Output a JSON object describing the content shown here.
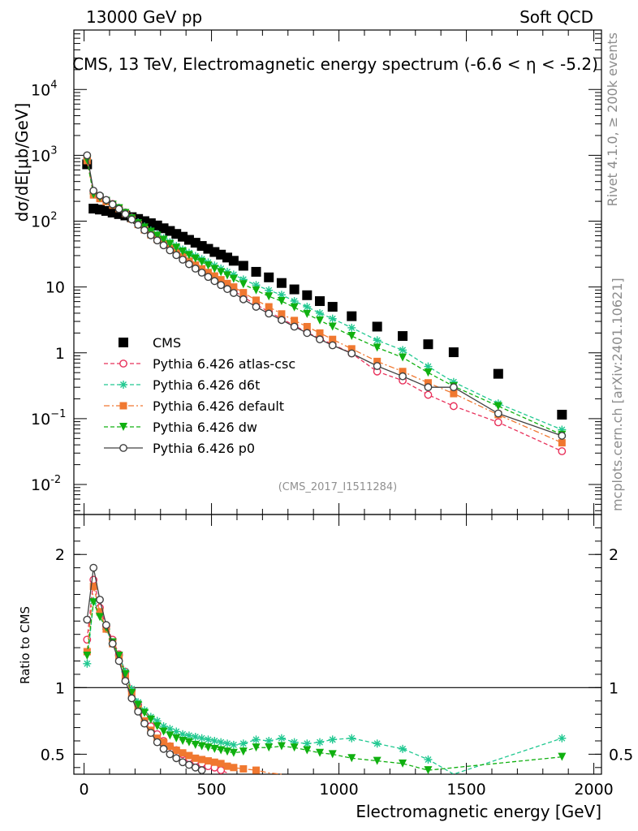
{
  "header": {
    "energy_label": "13000 GeV pp",
    "process_label": "Soft QCD"
  },
  "side_labels": {
    "rivet": "Rivet 4.1.0, ≥ 200k events",
    "mcplots": "mcplots.cern.ch [arXiv:2401.10621]"
  },
  "colors": {
    "CMS": "#000000",
    "atlas_csc": "#e8305a",
    "d6t": "#20c890",
    "default": "#f07830",
    "dw": "#10b010",
    "p0": "#404040"
  },
  "chart_data": [
    {
      "type": "scatter",
      "panel": "main",
      "title": "CMS, 13 TeV, Electromagnetic energy spectrum (-6.6 < η < -5.2)",
      "ylabel": "dσ/dE[μb/GeV]",
      "xlabel": "Electromagnetic energy [GeV]",
      "yscale": "log",
      "xlim": [
        -40,
        2030
      ],
      "ylim": [
        0.0035,
        80000
      ],
      "analysis_id": "(CMS_2017_I1511284)",
      "x_ticks": [
        "0",
        "500",
        "1000",
        "1500",
        "2000"
      ],
      "y_ticks": [
        {
          "base": "10",
          "exp": "-2",
          "value": 0.01
        },
        {
          "base": "10",
          "exp": "−1",
          "value": 0.1
        },
        {
          "base": "1",
          "exp": "",
          "value": 1
        },
        {
          "base": "10",
          "exp": "",
          "value": 10
        },
        {
          "base": "10",
          "exp": "2",
          "value": 100
        },
        {
          "base": "10",
          "exp": "3",
          "value": 1000
        },
        {
          "base": "10",
          "exp": "4",
          "value": 10000
        }
      ],
      "legend": [
        "CMS",
        "Pythia 6.426 atlas-csc",
        "Pythia 6.426 d6t",
        "Pythia 6.426 default",
        "Pythia 6.426 dw",
        "Pythia 6.426 p0"
      ],
      "series": [
        {
          "name": "CMS",
          "style": "square",
          "x": [
            12,
            37,
            62,
            87,
            112,
            137,
            162,
            187,
            212,
            237,
            262,
            287,
            312,
            337,
            362,
            387,
            412,
            437,
            462,
            487,
            512,
            537,
            562,
            587,
            625,
            675,
            725,
            775,
            825,
            875,
            925,
            975,
            1050,
            1150,
            1250,
            1350,
            1450,
            1625,
            1875
          ],
          "y": [
            730,
            155,
            150,
            143,
            135,
            128,
            122,
            115,
            108,
            100,
            93,
            86,
            78,
            71,
            64,
            58,
            52,
            47,
            42,
            38,
            34,
            31,
            28,
            25,
            21,
            17,
            14,
            11.5,
            9.2,
            7.5,
            6.1,
            5.0,
            3.6,
            2.5,
            1.8,
            1.35,
            1.02,
            0.48,
            0.115
          ]
        },
        {
          "name": "Pythia 6.426 atlas-csc",
          "style": "open-circle",
          "x": [
            12,
            37,
            62,
            87,
            112,
            137,
            162,
            187,
            212,
            237,
            262,
            287,
            312,
            337,
            362,
            387,
            412,
            437,
            462,
            487,
            512,
            537,
            562,
            587,
            625,
            675,
            725,
            775,
            825,
            875,
            925,
            975,
            1050,
            1150,
            1250,
            1350,
            1450,
            1625,
            1875
          ],
          "y": [
            880,
            275,
            235,
            208,
            183,
            159,
            136,
            113,
            94,
            79,
            66,
            56,
            47,
            40,
            34,
            29,
            24.5,
            21,
            18,
            15.5,
            13.5,
            11.7,
            10.2,
            8.8,
            7.0,
            5.4,
            4.2,
            3.3,
            2.6,
            2.05,
            1.65,
            1.35,
            0.98,
            0.52,
            0.38,
            0.23,
            0.155,
            0.088,
            0.032
          ]
        },
        {
          "name": "Pythia 6.426 d6t",
          "style": "star",
          "x": [
            12,
            37,
            62,
            87,
            112,
            137,
            162,
            187,
            212,
            237,
            262,
            287,
            312,
            337,
            362,
            387,
            412,
            437,
            462,
            487,
            512,
            537,
            562,
            587,
            625,
            675,
            725,
            775,
            825,
            875,
            925,
            975,
            1050,
            1150,
            1250,
            1350,
            1450,
            1625,
            1875
          ],
          "y": [
            860,
            260,
            230,
            205,
            180,
            160,
            135,
            113,
            96,
            83,
            72,
            63,
            55,
            48,
            42,
            37,
            33,
            29.5,
            26.5,
            23.6,
            21.2,
            19,
            17,
            15.4,
            13.0,
            10.7,
            8.9,
            7.6,
            6.1,
            5.0,
            4.0,
            3.3,
            2.4,
            1.55,
            1.1,
            0.62,
            0.36,
            0.17,
            0.068
          ]
        },
        {
          "name": "Pythia 6.426 default",
          "style": "filled-square",
          "x": [
            12,
            37,
            62,
            87,
            112,
            137,
            162,
            187,
            212,
            237,
            262,
            287,
            312,
            337,
            362,
            387,
            412,
            437,
            462,
            487,
            512,
            537,
            562,
            587,
            625,
            675,
            725,
            775,
            825,
            875,
            925,
            975,
            1050,
            1150,
            1250,
            1350,
            1450,
            1625,
            1875
          ],
          "y": [
            830,
            250,
            220,
            198,
            175,
            155,
            131,
            108,
            89,
            74,
            62,
            53,
            45,
            38.5,
            33,
            28.5,
            24.7,
            21.5,
            18.9,
            16.6,
            14.7,
            12.9,
            11.3,
            10.0,
            8.2,
            6.3,
            5.0,
            3.9,
            3.1,
            2.5,
            2.0,
            1.6,
            1.15,
            0.74,
            0.52,
            0.35,
            0.24,
            0.115,
            0.043
          ]
        },
        {
          "name": "Pythia 6.426 dw",
          "style": "triangle-down",
          "x": [
            12,
            37,
            62,
            87,
            112,
            137,
            162,
            187,
            212,
            237,
            262,
            287,
            312,
            337,
            362,
            387,
            412,
            437,
            462,
            487,
            512,
            537,
            562,
            587,
            625,
            675,
            725,
            775,
            825,
            875,
            925,
            975,
            1050,
            1150,
            1250,
            1350,
            1450,
            1625,
            1875
          ],
          "y": [
            850,
            255,
            228,
            203,
            178,
            157,
            133,
            110,
            93,
            80,
            69,
            60,
            52,
            45,
            39.5,
            34.5,
            30.5,
            27,
            24,
            21.2,
            18.8,
            16.8,
            15,
            13.3,
            11.0,
            8.9,
            7.2,
            6.1,
            4.9,
            3.9,
            3.1,
            2.5,
            1.8,
            1.2,
            0.85,
            0.5,
            0.31,
            0.155,
            0.057
          ]
        },
        {
          "name": "Pythia 6.426 p0",
          "style": "open-circle-line",
          "x": [
            12,
            37,
            62,
            87,
            112,
            137,
            162,
            187,
            212,
            237,
            262,
            287,
            312,
            337,
            362,
            387,
            412,
            437,
            462,
            487,
            512,
            537,
            562,
            587,
            625,
            675,
            725,
            775,
            825,
            875,
            925,
            975,
            1050,
            1150,
            1250,
            1350,
            1450,
            1625,
            1875
          ],
          "y": [
            1000,
            290,
            245,
            210,
            180,
            153,
            128,
            106,
            88,
            73,
            61,
            51,
            43,
            36,
            30.5,
            26,
            22.2,
            19,
            16.5,
            14.2,
            12.3,
            10.7,
            9.3,
            8.1,
            6.5,
            5.0,
            3.95,
            3.15,
            2.5,
            2.0,
            1.6,
            1.3,
            0.98,
            0.63,
            0.44,
            0.3,
            0.3,
            0.12,
            0.055
          ]
        }
      ]
    },
    {
      "type": "line",
      "panel": "ratio",
      "ylabel": "Ratio to CMS",
      "xlabel": "Electromagnetic energy [GeV]",
      "xlim": [
        -40,
        2030
      ],
      "ylim": [
        0.35,
        2.3
      ],
      "y_ticks": [
        "0.5",
        "1",
        "2"
      ],
      "x_ticks": [
        "0",
        "500",
        "1000",
        "1500",
        "2000"
      ],
      "series": [
        {
          "name": "Pythia 6.426 atlas-csc",
          "x": [
            12,
            37,
            62,
            87,
            112,
            137,
            162,
            187,
            212,
            237,
            262,
            287,
            312,
            337,
            362,
            387,
            412,
            437,
            462,
            487,
            512,
            537,
            562
          ],
          "y": [
            1.36,
            1.81,
            1.6,
            1.46,
            1.36,
            1.25,
            1.12,
            0.98,
            0.87,
            0.79,
            0.71,
            0.65,
            0.6,
            0.56,
            0.53,
            0.5,
            0.47,
            0.45,
            0.43,
            0.41,
            0.4,
            0.38,
            0.36
          ]
        },
        {
          "name": "Pythia 6.426 d6t",
          "x": [
            12,
            37,
            62,
            87,
            112,
            137,
            162,
            187,
            212,
            237,
            262,
            287,
            312,
            337,
            362,
            387,
            412,
            437,
            462,
            487,
            512,
            537,
            562,
            587,
            625,
            675,
            725,
            775,
            825,
            875,
            925,
            975,
            1050,
            1150,
            1250,
            1350,
            1450,
            1625,
            1875
          ],
          "y": [
            1.18,
            1.65,
            1.56,
            1.44,
            1.33,
            1.24,
            1.12,
            0.99,
            0.89,
            0.83,
            0.78,
            0.75,
            0.71,
            0.69,
            0.67,
            0.65,
            0.64,
            0.63,
            0.62,
            0.61,
            0.6,
            0.59,
            0.58,
            0.57,
            0.58,
            0.61,
            0.6,
            0.62,
            0.59,
            0.58,
            0.59,
            0.61,
            0.62,
            0.58,
            0.54,
            0.46,
            0.35,
            0.33,
            0.62
          ]
        },
        {
          "name": "Pythia 6.426 default",
          "x": [
            12,
            37,
            62,
            87,
            112,
            137,
            162,
            187,
            212,
            237,
            262,
            287,
            312,
            337,
            362,
            387,
            412,
            437,
            462,
            487,
            512,
            537,
            562,
            587,
            625,
            675,
            725,
            775,
            825,
            875,
            925
          ],
          "y": [
            1.27,
            1.76,
            1.57,
            1.44,
            1.33,
            1.22,
            1.08,
            0.95,
            0.84,
            0.75,
            0.68,
            0.62,
            0.59,
            0.56,
            0.53,
            0.51,
            0.49,
            0.47,
            0.46,
            0.45,
            0.44,
            0.43,
            0.41,
            0.4,
            0.39,
            0.38,
            0.36,
            0.35,
            0.34,
            0.34,
            0.33
          ]
        },
        {
          "name": "Pythia 6.426 dw",
          "x": [
            12,
            37,
            62,
            87,
            112,
            137,
            162,
            187,
            212,
            237,
            262,
            287,
            312,
            337,
            362,
            387,
            412,
            437,
            462,
            487,
            512,
            537,
            562,
            587,
            625,
            675,
            725,
            775,
            825,
            875,
            925,
            975,
            1050,
            1150,
            1250,
            1350,
            1450,
            1625,
            1875
          ],
          "y": [
            1.24,
            1.64,
            1.53,
            1.45,
            1.34,
            1.24,
            1.1,
            0.96,
            0.87,
            0.81,
            0.76,
            0.71,
            0.67,
            0.64,
            0.62,
            0.6,
            0.59,
            0.57,
            0.56,
            0.55,
            0.54,
            0.53,
            0.52,
            0.51,
            0.52,
            0.55,
            0.55,
            0.56,
            0.55,
            0.53,
            0.51,
            0.5,
            0.47,
            0.45,
            0.43,
            0.38,
            0.32,
            0.31,
            0.48
          ]
        },
        {
          "name": "Pythia 6.426 p0",
          "x": [
            12,
            37,
            62,
            87,
            112,
            137,
            162,
            187,
            212,
            237,
            262,
            287,
            312,
            337,
            362,
            387,
            412,
            437,
            462
          ],
          "y": [
            1.51,
            1.9,
            1.66,
            1.47,
            1.33,
            1.2,
            1.05,
            0.92,
            0.82,
            0.73,
            0.66,
            0.59,
            0.54,
            0.5,
            0.47,
            0.44,
            0.42,
            0.4,
            0.38
          ]
        }
      ]
    }
  ]
}
